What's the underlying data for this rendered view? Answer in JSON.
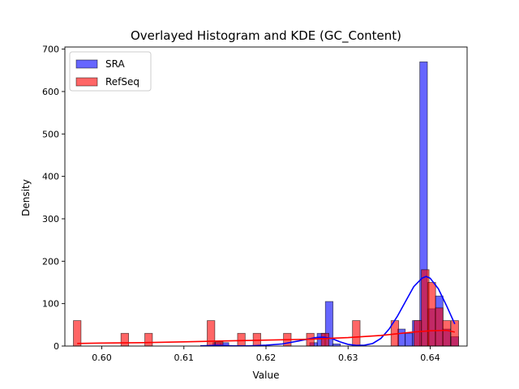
{
  "chart_data": {
    "type": "bar",
    "title": "Overlayed Histogram and KDE (GC_Content)",
    "xlabel": "Value",
    "ylabel": "Density",
    "xlim": [
      0.5955,
      0.6445
    ],
    "ylim": [
      0,
      705
    ],
    "xticks": [
      0.6,
      0.61,
      0.62,
      0.63,
      0.64
    ],
    "xtick_labels": [
      "0.60",
      "0.61",
      "0.62",
      "0.63",
      "0.64"
    ],
    "yticks": [
      0,
      100,
      200,
      300,
      400,
      500,
      600,
      700
    ],
    "ytick_labels": [
      "0",
      "100",
      "200",
      "300",
      "400",
      "500",
      "600",
      "700"
    ],
    "grid": false,
    "legend": {
      "position": "top-left"
    },
    "bin_width": 0.00093,
    "series": [
      {
        "name": "SRA",
        "color": "#0000ff",
        "bins": [
          {
            "x": 0.614,
            "y": 8
          },
          {
            "x": 0.615,
            "y": 8
          },
          {
            "x": 0.6258,
            "y": 8
          },
          {
            "x": 0.6267,
            "y": 30
          },
          {
            "x": 0.6277,
            "y": 105
          },
          {
            "x": 0.6286,
            "y": 5
          },
          {
            "x": 0.6365,
            "y": 40
          },
          {
            "x": 0.6374,
            "y": 30
          },
          {
            "x": 0.6383,
            "y": 60
          },
          {
            "x": 0.6392,
            "y": 670
          },
          {
            "x": 0.6402,
            "y": 88
          },
          {
            "x": 0.6411,
            "y": 118
          },
          {
            "x": 0.642,
            "y": 40
          },
          {
            "x": 0.643,
            "y": 22
          }
        ],
        "kde": [
          [
            0.612,
            0.5
          ],
          [
            0.614,
            1.5
          ],
          [
            0.616,
            0.5
          ],
          [
            0.618,
            0.5
          ],
          [
            0.62,
            2
          ],
          [
            0.622,
            5
          ],
          [
            0.624,
            12
          ],
          [
            0.626,
            20
          ],
          [
            0.627,
            21
          ],
          [
            0.628,
            18
          ],
          [
            0.629,
            10
          ],
          [
            0.63,
            4
          ],
          [
            0.631,
            1.5
          ],
          [
            0.632,
            2
          ],
          [
            0.633,
            6
          ],
          [
            0.634,
            18
          ],
          [
            0.635,
            40
          ],
          [
            0.636,
            70
          ],
          [
            0.637,
            105
          ],
          [
            0.638,
            140
          ],
          [
            0.639,
            160
          ],
          [
            0.6395,
            164
          ],
          [
            0.64,
            160
          ],
          [
            0.641,
            135
          ],
          [
            0.642,
            95
          ],
          [
            0.643,
            52
          ]
        ]
      },
      {
        "name": "RefSeq",
        "color": "#ff0000",
        "bins": [
          {
            "x": 0.597,
            "y": 60
          },
          {
            "x": 0.6028,
            "y": 30
          },
          {
            "x": 0.6057,
            "y": 30
          },
          {
            "x": 0.6133,
            "y": 60
          },
          {
            "x": 0.6143,
            "y": 10
          },
          {
            "x": 0.617,
            "y": 30
          },
          {
            "x": 0.6189,
            "y": 30
          },
          {
            "x": 0.6226,
            "y": 30
          },
          {
            "x": 0.6254,
            "y": 30
          },
          {
            "x": 0.6272,
            "y": 30
          },
          {
            "x": 0.631,
            "y": 60
          },
          {
            "x": 0.6357,
            "y": 60
          },
          {
            "x": 0.6385,
            "y": 60
          },
          {
            "x": 0.6394,
            "y": 180
          },
          {
            "x": 0.6402,
            "y": 150
          },
          {
            "x": 0.6411,
            "y": 90
          },
          {
            "x": 0.642,
            "y": 60
          },
          {
            "x": 0.643,
            "y": 60
          }
        ],
        "kde": [
          [
            0.597,
            6
          ],
          [
            0.6,
            7
          ],
          [
            0.605,
            8
          ],
          [
            0.61,
            10
          ],
          [
            0.615,
            12
          ],
          [
            0.62,
            14
          ],
          [
            0.625,
            16
          ],
          [
            0.63,
            20
          ],
          [
            0.634,
            25
          ],
          [
            0.638,
            33
          ],
          [
            0.64,
            36
          ],
          [
            0.642,
            37
          ],
          [
            0.643,
            33
          ]
        ]
      }
    ]
  }
}
